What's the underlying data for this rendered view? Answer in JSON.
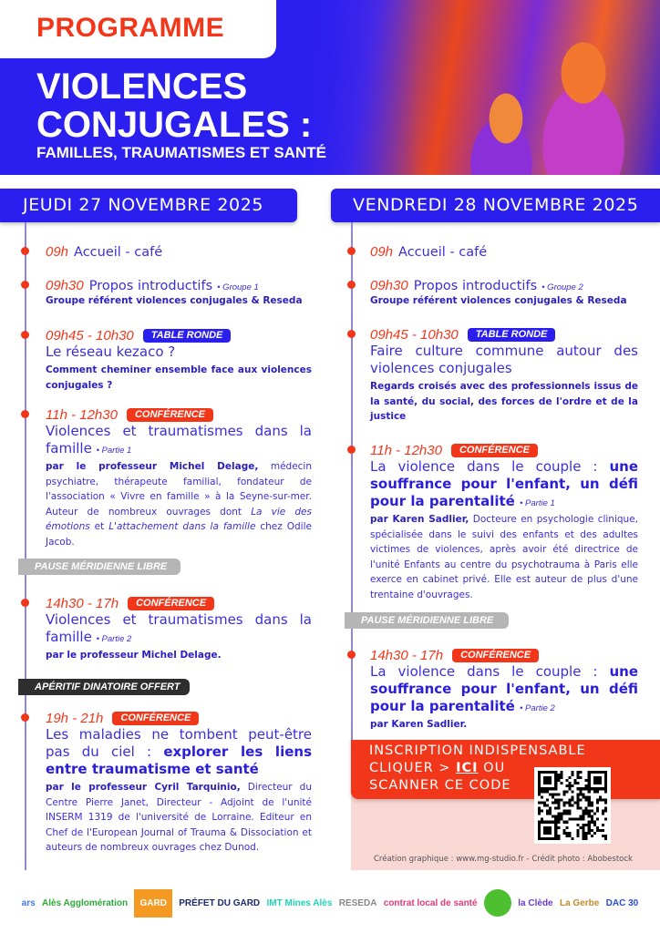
{
  "header": {
    "programme": "PROGRAMME",
    "title_line1": "VIOLENCES",
    "title_line2": "CONJUGALES :",
    "subtitle": "FAMILLES, TRAUMATISMES ET SANTÉ"
  },
  "colors": {
    "blue": "#2b1ff0",
    "red": "#f2361a",
    "text": "#3a2fd8",
    "pink": "#f9d7d2"
  },
  "days": [
    {
      "date": "JEUDI 27 NOVEMBRE 2025",
      "events": [
        {
          "time": "09h",
          "head": "Accueil - café"
        },
        {
          "time": "09h30",
          "head": "Propos introductifs",
          "part": "• Groupe 1",
          "desc": [
            {
              "t": "Groupe référent violences conjugales & Reseda",
              "b": true
            }
          ]
        },
        {
          "time": "09h45 - 10h30",
          "badge": "TABLE RONDE",
          "badge_type": "table",
          "title": [
            {
              "t": "Le réseau kezaco ?"
            }
          ],
          "desc": [
            {
              "t": "Comment cheminer ensemble face aux violences conjugales ?",
              "b": true
            }
          ]
        },
        {
          "time": "11h - 12h30",
          "badge": "CONFÉRENCE",
          "badge_type": "conf",
          "title": [
            {
              "t": "Violences et traumatismes dans la famille "
            }
          ],
          "part": "• Partie 1",
          "desc": [
            {
              "t": "par le professeur Michel Delage,",
              "b": true
            },
            {
              "t": " médecin psychiatre, thérapeute familial, fondateur de l'association « Vivre en famille » à la Seyne-sur-mer. Auteur de nombreux ouvrages dont "
            },
            {
              "t": "La vie des émotions",
              "i": true
            },
            {
              "t": " et "
            },
            {
              "t": "L'attachement dans la famille",
              "i": true
            },
            {
              "t": " chez Odile Jacob."
            }
          ]
        },
        {
          "pause": "PAUSE MÉRIDIENNE LIBRE",
          "pause_color": "#b5b5b5"
        },
        {
          "time": "14h30 - 17h",
          "badge": "CONFÉRENCE",
          "badge_type": "conf",
          "title": [
            {
              "t": "Violences et traumatismes dans la famille "
            }
          ],
          "part": "• Partie 2",
          "desc": [
            {
              "t": "par le professeur Michel Delage.",
              "b": true
            }
          ]
        },
        {
          "pause": "APÉRITIF DINATOIRE OFFERT",
          "pause_color": "#2e2e2e"
        },
        {
          "time": "19h - 21h",
          "badge": "CONFÉRENCE",
          "badge_type": "conf",
          "title": [
            {
              "t": "Les maladies ne tombent peut-être pas du ciel : "
            },
            {
              "t": "explorer les liens entre traumatisme et santé",
              "b": true
            }
          ],
          "desc": [
            {
              "t": "par le professeur Cyril Tarquinio,",
              "b": true
            },
            {
              "t": " Directeur du Centre Pierre Janet, Directeur - Adjoint de l'unité INSERM 1319 de l'université de Lorraine. Editeur en Chef de l'European Journal of Trauma & Dissociation et auteurs de nombreux ouvrages chez Dunod."
            }
          ]
        }
      ]
    },
    {
      "date": "VENDREDI 28 NOVEMBRE 2025",
      "events": [
        {
          "time": "09h",
          "head": "Accueil - café"
        },
        {
          "time": "09h30",
          "head": "Propos introductifs",
          "part": "• Groupe 2",
          "desc": [
            {
              "t": "Groupe référent violences conjugales & Reseda",
              "b": true
            }
          ]
        },
        {
          "time": "09h45 - 10h30",
          "badge": "TABLE RONDE",
          "badge_type": "table",
          "title": [
            {
              "t": "Faire culture commune autour des violences conjugales"
            }
          ],
          "desc": [
            {
              "t": "Regards croisés avec des professionnels issus de la santé, du social, des forces de l'ordre et de la justice",
              "b": true
            }
          ]
        },
        {
          "time": "11h - 12h30",
          "badge": "CONFÉRENCE",
          "badge_type": "conf",
          "title": [
            {
              "t": "La violence dans le couple : "
            },
            {
              "t": "une souffrance pour l'enfant, un défi pour la parentalité ",
              "b": true
            }
          ],
          "part": "• Partie 1",
          "desc": [
            {
              "t": "par Karen Sadlier,",
              "b": true
            },
            {
              "t": " Docteure en psychologie clinique, spécialisée dans le suivi des enfants et des adultes victimes de violences, après avoir été directrice de l'unité Enfants au centre du psychotrauma à Paris elle exerce en cabinet privé. Elle est auteur de plus d'une trentaine d'ouvrages."
            }
          ]
        },
        {
          "pause": "PAUSE MÉRIDIENNE LIBRE",
          "pause_color": "#b5b5b5"
        },
        {
          "time": "14h30 - 17h",
          "badge": "CONFÉRENCE",
          "badge_type": "conf",
          "title": [
            {
              "t": "La violence dans le couple : "
            },
            {
              "t": "une souffrance pour l'enfant, un défi pour la parentalité ",
              "b": true
            }
          ],
          "part": "• Partie 2",
          "desc": [
            {
              "t": "par Karen Sadlier.",
              "b": true
            }
          ]
        }
      ]
    }
  ],
  "inscription": {
    "line1": "INSCRIPTION INDISPENSABLE",
    "line2_pre": "CLIQUER > ",
    "link": "ICI",
    "line2_post": " OU",
    "line3": "SCANNER CE CODE"
  },
  "credit": "Création graphique : www.mg-studio.fr - Crédit photo : Abobestock",
  "logos": [
    "ars",
    "Alès Agglomération",
    "GARD",
    "PRÉFET DU GARD",
    "IMT Mines Alès",
    "RESEDA",
    "contrat local de santé",
    "",
    "la Clède",
    "La Gerbe",
    "DAC 30"
  ]
}
